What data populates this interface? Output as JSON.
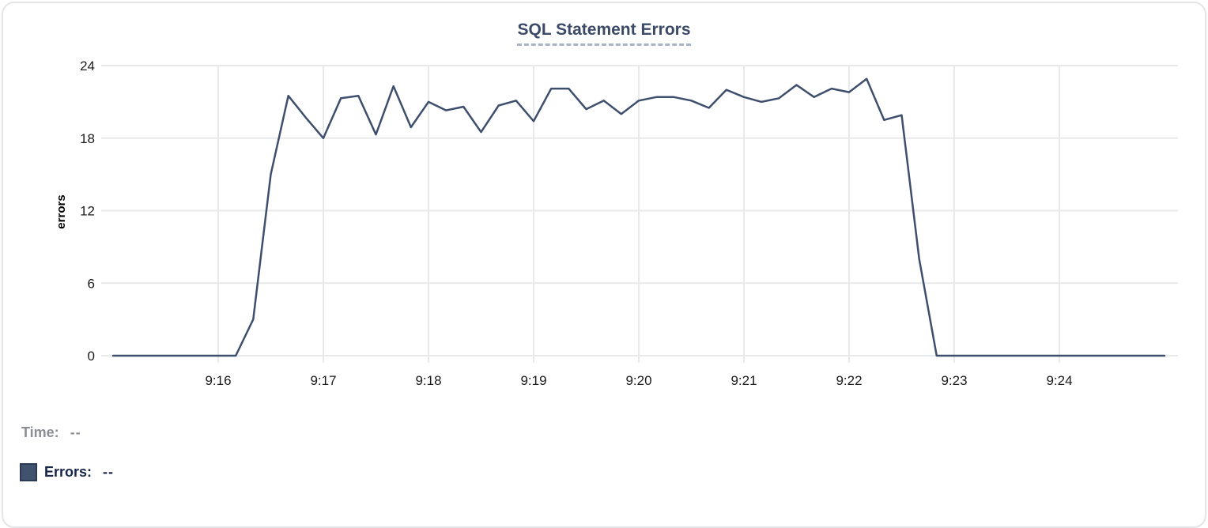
{
  "card_title": "SQL Statement Errors",
  "legend": {
    "time_label": "Time:",
    "time_value": "--",
    "errors_label": "Errors:",
    "errors_value": "--",
    "swatch_color": "#41526e"
  },
  "colors": {
    "series_line": "#3e4f6d",
    "title_text": "#3b4a66",
    "title_underline": "#a9b4c6",
    "grid_line": "#e8e9ea",
    "tick_text": "#1b1b1b",
    "time_text": "#8b8e96",
    "errors_text": "#16254a",
    "card_border": "#e4e5e7"
  },
  "chart_data": {
    "type": "line",
    "title": "SQL Statement Errors",
    "xlabel": "",
    "ylabel": "errors",
    "ylim": [
      0,
      24
    ],
    "y_ticks": [
      0,
      6,
      12,
      18,
      24
    ],
    "x_ticks": [
      "9:16",
      "9:17",
      "9:18",
      "9:19",
      "9:20",
      "9:21",
      "9:22",
      "9:23",
      "9:24"
    ],
    "x_range": [
      "9:15:00",
      "9:25:00"
    ],
    "grid": true,
    "legend_position": "bottom-left",
    "series": [
      {
        "name": "Errors",
        "color": "#3e4f6d",
        "x": [
          "9:15:00",
          "9:15:10",
          "9:15:20",
          "9:15:30",
          "9:15:40",
          "9:15:50",
          "9:16:00",
          "9:16:10",
          "9:16:20",
          "9:16:30",
          "9:16:40",
          "9:16:50",
          "9:17:00",
          "9:17:10",
          "9:17:20",
          "9:17:30",
          "9:17:40",
          "9:17:50",
          "9:18:00",
          "9:18:10",
          "9:18:20",
          "9:18:30",
          "9:18:40",
          "9:18:50",
          "9:19:00",
          "9:19:10",
          "9:19:20",
          "9:19:30",
          "9:19:40",
          "9:19:50",
          "9:20:00",
          "9:20:10",
          "9:20:20",
          "9:20:30",
          "9:20:40",
          "9:20:50",
          "9:21:00",
          "9:21:10",
          "9:21:20",
          "9:21:30",
          "9:21:40",
          "9:21:50",
          "9:22:00",
          "9:22:10",
          "9:22:20",
          "9:22:30",
          "9:22:40",
          "9:22:50",
          "9:23:00",
          "9:23:10",
          "9:23:20",
          "9:23:30",
          "9:23:40",
          "9:23:50",
          "9:24:00",
          "9:24:10",
          "9:24:20",
          "9:24:30",
          "9:24:40",
          "9:24:50",
          "9:25:00"
        ],
        "y": [
          0,
          0,
          0,
          0,
          0,
          0,
          0,
          0,
          3,
          15,
          21.5,
          19.7,
          18,
          21.3,
          21.5,
          18.3,
          22.3,
          18.9,
          21,
          20.3,
          20.6,
          18.5,
          20.7,
          21.1,
          19.4,
          22.1,
          22.1,
          20.4,
          21.1,
          20,
          21.1,
          21.4,
          21.4,
          21.1,
          20.5,
          22,
          21.4,
          21,
          21.3,
          22.4,
          21.4,
          22.1,
          21.8,
          22.9,
          19.5,
          19.9,
          8,
          0,
          0,
          0,
          0,
          0,
          0,
          0,
          0,
          0,
          0,
          0,
          0,
          0,
          0
        ]
      }
    ]
  }
}
